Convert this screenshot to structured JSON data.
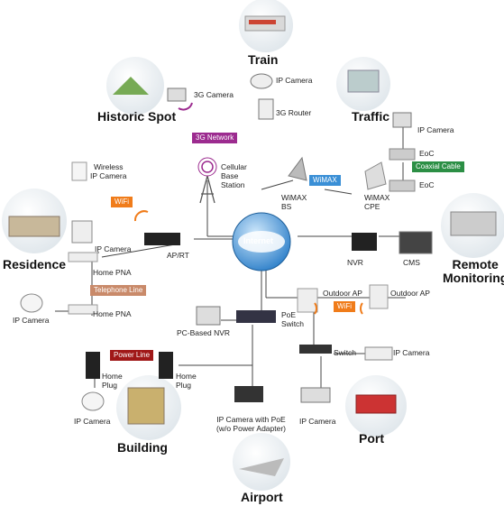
{
  "colors": {
    "link": "#444444",
    "globe": "#3a8fd6",
    "tag_3g": "#9c2b8f",
    "tag_wifi": "#f07c1a",
    "tag_wimax": "#3a8fd6",
    "tag_coax": "#2c8f45",
    "tag_phone": "#c98a6a",
    "tag_power": "#a01818",
    "bubble": "#e9eef2"
  },
  "icons": [
    "internet-cloud-icon",
    "cell-tower-icon",
    "wifi-signal-icon",
    "camera-icon",
    "router-icon",
    "switch-icon",
    "nvr-icon",
    "monitor-icon",
    "antenna-icon",
    "home-plug-icon"
  ],
  "diagram": {
    "center": "Internet",
    "sites": {
      "train": "Train",
      "historic_spot": "Historic  Spot",
      "traffic": "Traffic",
      "residence": "Residence",
      "remote_monitoring": "Remote\nMonitoring",
      "building": "Building",
      "port": "Port",
      "airport": "Airport"
    },
    "labels": {
      "ip_camera_train": "IP Camera",
      "router_3g": "3G Router",
      "camera_3g": "3G Camera",
      "ip_camera_traffic": "IP Camera",
      "eoc_top": "EoC",
      "eoc_bottom": "EoC",
      "wireless_ip_camera": "Wireless\nIP Camera",
      "cellular_base_station": "Cellular\nBase\nStation",
      "wimax_bs": "WiMAX\nBS",
      "wimax_cpe": "WiMAX\nCPE",
      "ip_camera_residence": "IP Camera",
      "ap_rt": "AP/RT",
      "home_pna_top": "Home PNA",
      "home_pna_bottom": "Home PNA",
      "ip_camera_residence_low": "IP Camera",
      "nvr": "NVR",
      "cms": "CMS",
      "outdoor_ap_left": "Outdoor AP",
      "outdoor_ap_right": "Outdoor AP",
      "pc_based_nvr": "PC-Based NVR",
      "poe_switch": "PoE\nSwitch",
      "switch": "Switch",
      "ip_camera_port_right": "IP Camera",
      "home_plug_left": "Home\nPlug",
      "home_plug_right": "Home\nPlug",
      "ip_camera_building": "IP Camera",
      "ip_camera_poe": "IP Camera with PoE\n(w/o Power Adapter)",
      "ip_camera_port": "IP Camera"
    },
    "tags": {
      "network_3g": "3G Network",
      "wifi_left": "WiFi",
      "wimax": "WiMAX",
      "coaxial": "Coaxial Cable",
      "telephone": "Telephone Line",
      "wifi_right": "WiFi",
      "power_line": "Power Line"
    }
  }
}
